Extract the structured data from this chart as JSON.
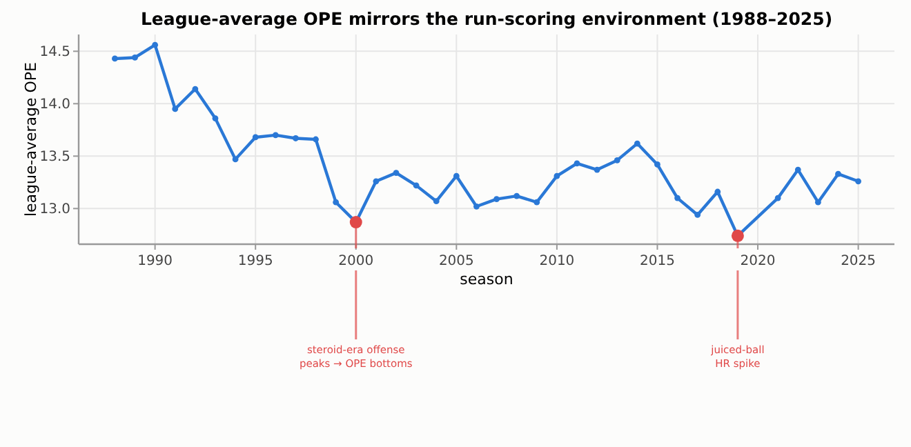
{
  "chart_data": {
    "type": "line",
    "title": "League-average OPE mirrors the run-scoring environment (1988–2025)",
    "xlabel": "season",
    "ylabel": "league-average OPE",
    "x": [
      1988,
      1989,
      1990,
      1991,
      1992,
      1993,
      1994,
      1995,
      1996,
      1997,
      1998,
      1999,
      2000,
      2001,
      2002,
      2003,
      2004,
      2005,
      2006,
      2007,
      2008,
      2009,
      2010,
      2011,
      2012,
      2013,
      2014,
      2015,
      2016,
      2017,
      2018,
      2019,
      2021,
      2022,
      2023,
      2024,
      2025
    ],
    "series": [
      {
        "color": "#2a78d6",
        "values": [
          14.43,
          14.44,
          14.56,
          13.95,
          14.14,
          13.86,
          13.47,
          13.68,
          13.7,
          13.67,
          13.66,
          13.06,
          12.87,
          13.26,
          13.34,
          13.22,
          13.07,
          13.31,
          13.02,
          13.09,
          13.12,
          13.06,
          13.31,
          13.43,
          13.37,
          13.46,
          13.62,
          13.42,
          13.1,
          12.94,
          13.16,
          12.74,
          13.1,
          13.37,
          13.06,
          13.33,
          13.26
        ]
      },
      {
        "type": "scatter",
        "color": "#e04848",
        "x": [
          2000,
          2019
        ],
        "values": [
          12.87,
          12.74
        ]
      }
    ],
    "annotations": [
      "steroid-era offense\npeaks → OPE bottoms",
      "juiced-ball\nHR spike"
    ],
    "xlim": [
      1986.2,
      2026.8
    ],
    "xticks": [
      1990,
      1995,
      2000,
      2005,
      2010,
      2015,
      2020,
      2025
    ],
    "ylim": [
      12.66,
      14.66
    ],
    "yticks": [
      {
        "value": 13,
        "label": "13.0"
      },
      13.5,
      {
        "value": 14,
        "label": "14.0"
      },
      14.5
    ],
    "grid": true,
    "marker": "circle",
    "line_style": "solid"
  }
}
